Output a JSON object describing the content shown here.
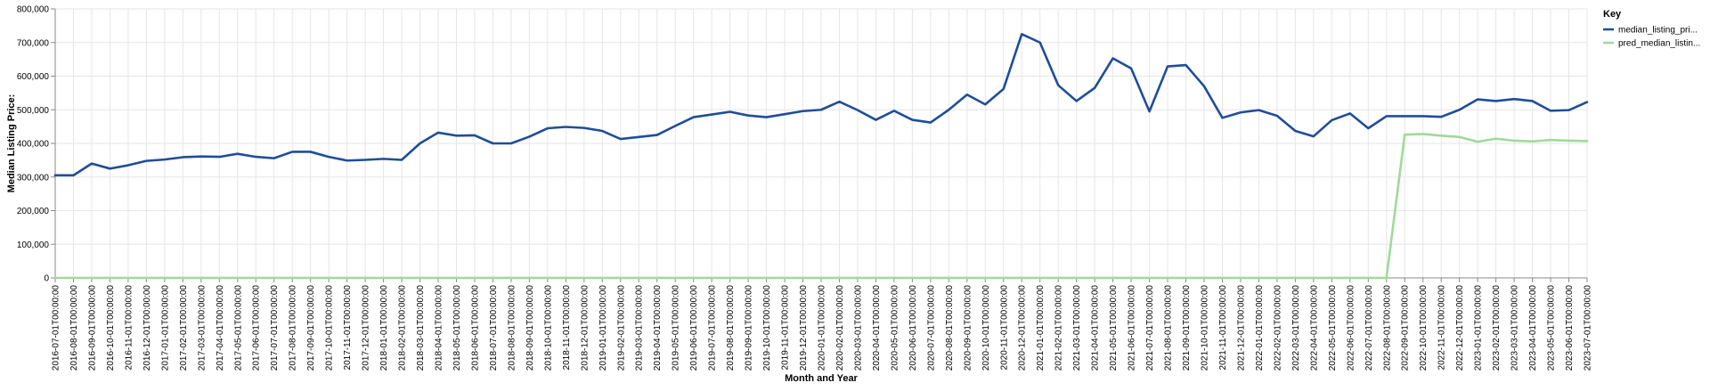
{
  "chart_data": {
    "type": "line",
    "xlabel": "Month and Year",
    "ylabel": "Median Listing Price:",
    "ylim": [
      0,
      800000
    ],
    "yticks": [
      "0",
      "100,000",
      "200,000",
      "300,000",
      "400,000",
      "500,000",
      "600,000",
      "700,000",
      "800,000"
    ],
    "grid": true,
    "legend": {
      "title": "Key",
      "position": "top-right",
      "items": [
        "median_listing_pri...",
        "pred_median_listin..."
      ]
    },
    "categories": [
      "2016-07-01T00:00:00",
      "2016-08-01T00:00:00",
      "2016-09-01T00:00:00",
      "2016-10-01T00:00:00",
      "2016-11-01T00:00:00",
      "2016-12-01T00:00:00",
      "2017-01-01T00:00:00",
      "2017-02-01T00:00:00",
      "2017-03-01T00:00:00",
      "2017-04-01T00:00:00",
      "2017-05-01T00:00:00",
      "2017-06-01T00:00:00",
      "2017-07-01T00:00:00",
      "2017-08-01T00:00:00",
      "2017-09-01T00:00:00",
      "2017-10-01T00:00:00",
      "2017-11-01T00:00:00",
      "2017-12-01T00:00:00",
      "2018-01-01T00:00:00",
      "2018-02-01T00:00:00",
      "2018-03-01T00:00:00",
      "2018-04-01T00:00:00",
      "2018-05-01T00:00:00",
      "2018-06-01T00:00:00",
      "2018-07-01T00:00:00",
      "2018-08-01T00:00:00",
      "2018-09-01T00:00:00",
      "2018-10-01T00:00:00",
      "2018-11-01T00:00:00",
      "2018-12-01T00:00:00",
      "2019-01-01T00:00:00",
      "2019-02-01T00:00:00",
      "2019-03-01T00:00:00",
      "2019-04-01T00:00:00",
      "2019-05-01T00:00:00",
      "2019-06-01T00:00:00",
      "2019-07-01T00:00:00",
      "2019-08-01T00:00:00",
      "2019-09-01T00:00:00",
      "2019-10-01T00:00:00",
      "2019-11-01T00:00:00",
      "2019-12-01T00:00:00",
      "2020-01-01T00:00:00",
      "2020-02-01T00:00:00",
      "2020-03-01T00:00:00",
      "2020-04-01T00:00:00",
      "2020-05-01T00:00:00",
      "2020-06-01T00:00:00",
      "2020-07-01T00:00:00",
      "2020-08-01T00:00:00",
      "2020-09-01T00:00:00",
      "2020-10-01T00:00:00",
      "2020-11-01T00:00:00",
      "2020-12-01T00:00:00",
      "2021-01-01T00:00:00",
      "2021-02-01T00:00:00",
      "2021-03-01T00:00:00",
      "2021-04-01T00:00:00",
      "2021-05-01T00:00:00",
      "2021-06-01T00:00:00",
      "2021-07-01T00:00:00",
      "2021-08-01T00:00:00",
      "2021-09-01T00:00:00",
      "2021-10-01T00:00:00",
      "2021-11-01T00:00:00",
      "2021-12-01T00:00:00",
      "2022-01-01T00:00:00",
      "2022-02-01T00:00:00",
      "2022-03-01T00:00:00",
      "2022-04-01T00:00:00",
      "2022-05-01T00:00:00",
      "2022-06-01T00:00:00",
      "2022-07-01T00:00:00",
      "2022-08-01T00:00:00",
      "2022-09-01T00:00:00",
      "2022-10-01T00:00:00",
      "2022-11-01T00:00:00",
      "2022-12-01T00:00:00",
      "2023-01-01T00:00:00",
      "2023-02-01T00:00:00",
      "2023-03-01T00:00:00",
      "2023-04-01T00:00:00",
      "2023-05-01T00:00:00",
      "2023-06-01T00:00:00",
      "2023-07-01T00:00:00"
    ],
    "series": [
      {
        "name": "median_listing_pri...",
        "color": "#1f4e99",
        "values": [
          305000,
          305000,
          340000,
          325000,
          335000,
          348000,
          352000,
          359000,
          361000,
          360000,
          369000,
          360000,
          356000,
          375000,
          375000,
          360000,
          349000,
          351000,
          354000,
          351000,
          400000,
          432000,
          423000,
          424000,
          400000,
          400000,
          420000,
          445000,
          449000,
          446000,
          437000,
          413000,
          419000,
          425000,
          452000,
          478000,
          486000,
          494000,
          483000,
          478000,
          487000,
          496000,
          500000,
          524000,
          499000,
          470000,
          497000,
          470000,
          462000,
          500000,
          545000,
          516000,
          562000,
          725000,
          700000,
          573000,
          526000,
          565000,
          653000,
          623000,
          495000,
          629000,
          633000,
          570000,
          476000,
          492000,
          499000,
          482000,
          437000,
          421000,
          469000,
          489000,
          445000,
          481000,
          481000,
          481000,
          479000,
          500000,
          531000,
          526000,
          532000,
          526000,
          497000,
          499000,
          523000
        ]
      },
      {
        "name": "pred_median_listin...",
        "color": "#a1d99b",
        "values": [
          0,
          0,
          0,
          0,
          0,
          0,
          0,
          0,
          0,
          0,
          0,
          0,
          0,
          0,
          0,
          0,
          0,
          0,
          0,
          0,
          0,
          0,
          0,
          0,
          0,
          0,
          0,
          0,
          0,
          0,
          0,
          0,
          0,
          0,
          0,
          0,
          0,
          0,
          0,
          0,
          0,
          0,
          0,
          0,
          0,
          0,
          0,
          0,
          0,
          0,
          0,
          0,
          0,
          0,
          0,
          0,
          0,
          0,
          0,
          0,
          0,
          0,
          0,
          0,
          0,
          0,
          0,
          0,
          0,
          0,
          0,
          0,
          0,
          0,
          426000,
          428000,
          423000,
          419000,
          405000,
          414000,
          408000,
          406000,
          410000,
          408000,
          407000
        ]
      }
    ]
  }
}
